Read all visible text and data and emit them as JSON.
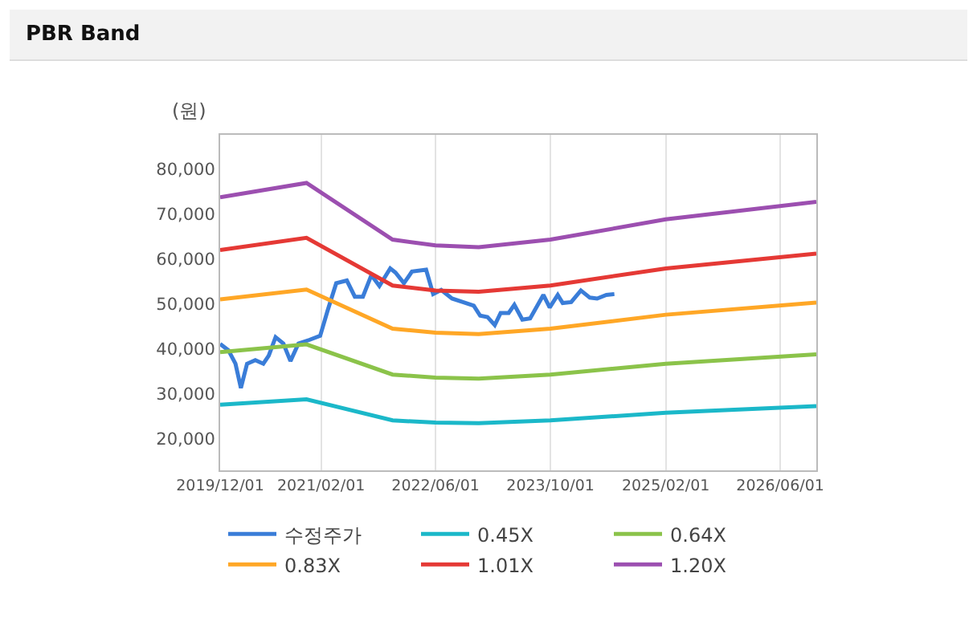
{
  "chart_data": {
    "type": "line",
    "title": "PBR Band",
    "ylabel": "(원)",
    "xlim": [
      "2019-12-01",
      "2026-11-01"
    ],
    "xticks": [
      {
        "value": "2019-12-01",
        "label": "2019/12/01"
      },
      {
        "value": "2021-02-01",
        "label": "2021/02/01"
      },
      {
        "value": "2022-06-01",
        "label": "2022/06/01"
      },
      {
        "value": "2023-10-01",
        "label": "2023/10/01"
      },
      {
        "value": "2025-02-01",
        "label": "2025/02/01"
      },
      {
        "value": "2026-06-01",
        "label": "2026/06/01"
      }
    ],
    "ylim": [
      13000,
      87600
    ],
    "yticks": [
      {
        "value": 20000,
        "label": "20,000"
      },
      {
        "value": 30000,
        "label": "30,000"
      },
      {
        "value": 40000,
        "label": "40,000"
      },
      {
        "value": 50000,
        "label": "50,000"
      },
      {
        "value": 60000,
        "label": "60,000"
      },
      {
        "value": 70000,
        "label": "70,000"
      },
      {
        "value": 80000,
        "label": "80,000"
      }
    ],
    "grid": "x",
    "legend": "bottom",
    "marker": "none",
    "line_style": "solid",
    "series": [
      {
        "name": "수정주가",
        "color": "#3a7dd8",
        "x": [
          "2019-12-01",
          "2020-01-05",
          "2020-02-04",
          "2020-02-27",
          "2020-03-24",
          "2020-04-28",
          "2020-06-01",
          "2020-06-24",
          "2020-07-23",
          "2020-08-25",
          "2020-09-24",
          "2020-10-28",
          "2020-12-13",
          "2021-01-28",
          "2021-03-01",
          "2021-04-06",
          "2021-05-21",
          "2021-06-24",
          "2021-07-28",
          "2021-09-02",
          "2021-10-06",
          "2021-11-21",
          "2021-12-13",
          "2022-01-18",
          "2022-02-21",
          "2022-04-22",
          "2022-05-22",
          "2022-06-25",
          "2022-08-10",
          "2022-09-25",
          "2022-11-10",
          "2022-12-07",
          "2023-01-07",
          "2023-02-07",
          "2023-03-04",
          "2023-04-07",
          "2023-05-01",
          "2023-06-04",
          "2023-07-07",
          "2023-09-01",
          "2023-09-28",
          "2023-11-01",
          "2023-11-22",
          "2023-12-28",
          "2024-02-07",
          "2024-03-16",
          "2024-04-16",
          "2024-05-25",
          "2024-06-28"
        ],
        "values": [
          41100,
          39700,
          36700,
          31300,
          36700,
          37500,
          36700,
          38500,
          42600,
          41200,
          37300,
          41200,
          42000,
          42900,
          48600,
          54600,
          55200,
          51600,
          51600,
          56400,
          54000,
          57900,
          57000,
          54600,
          57200,
          57600,
          52200,
          53100,
          51200,
          50400,
          49600,
          47400,
          47100,
          45300,
          48000,
          48000,
          49800,
          46500,
          46800,
          52000,
          49200,
          52000,
          50200,
          50400,
          53000,
          51400,
          51200,
          52000,
          52200
        ]
      },
      {
        "name": "0.45X",
        "color": "#1bb8c9",
        "x": [
          "2019-12-01",
          "2020-12-01",
          "2021-12-01",
          "2022-06-01",
          "2022-12-01",
          "2023-10-01",
          "2025-02-01",
          "2026-11-01"
        ],
        "values": [
          27600,
          28800,
          24100,
          23600,
          23500,
          24100,
          25800,
          27300
        ]
      },
      {
        "name": "0.64X",
        "color": "#8bc34a",
        "x": [
          "2019-12-01",
          "2020-12-01",
          "2021-12-01",
          "2022-06-01",
          "2022-12-01",
          "2023-10-01",
          "2025-02-01",
          "2026-11-01"
        ],
        "values": [
          39300,
          41000,
          34300,
          33600,
          33400,
          34300,
          36700,
          38800
        ]
      },
      {
        "name": "0.83X",
        "color": "#ffa726",
        "x": [
          "2019-12-01",
          "2020-12-01",
          "2021-12-01",
          "2022-06-01",
          "2022-12-01",
          "2023-10-01",
          "2025-02-01",
          "2026-11-01"
        ],
        "values": [
          51000,
          53200,
          44500,
          43600,
          43300,
          44500,
          47600,
          50300
        ]
      },
      {
        "name": "1.01X",
        "color": "#e53935",
        "x": [
          "2019-12-01",
          "2020-12-01",
          "2021-12-01",
          "2022-06-01",
          "2022-12-01",
          "2023-10-01",
          "2025-02-01",
          "2026-11-01"
        ],
        "values": [
          62000,
          64700,
          54100,
          53000,
          52700,
          54100,
          57900,
          61200
        ]
      },
      {
        "name": "1.20X",
        "color": "#9c4fb0",
        "x": [
          "2019-12-01",
          "2020-12-01",
          "2021-12-01",
          "2022-06-01",
          "2022-12-01",
          "2023-10-01",
          "2025-02-01",
          "2026-11-01"
        ],
        "values": [
          73700,
          76900,
          64300,
          63000,
          62600,
          64300,
          68800,
          72700
        ]
      }
    ]
  }
}
